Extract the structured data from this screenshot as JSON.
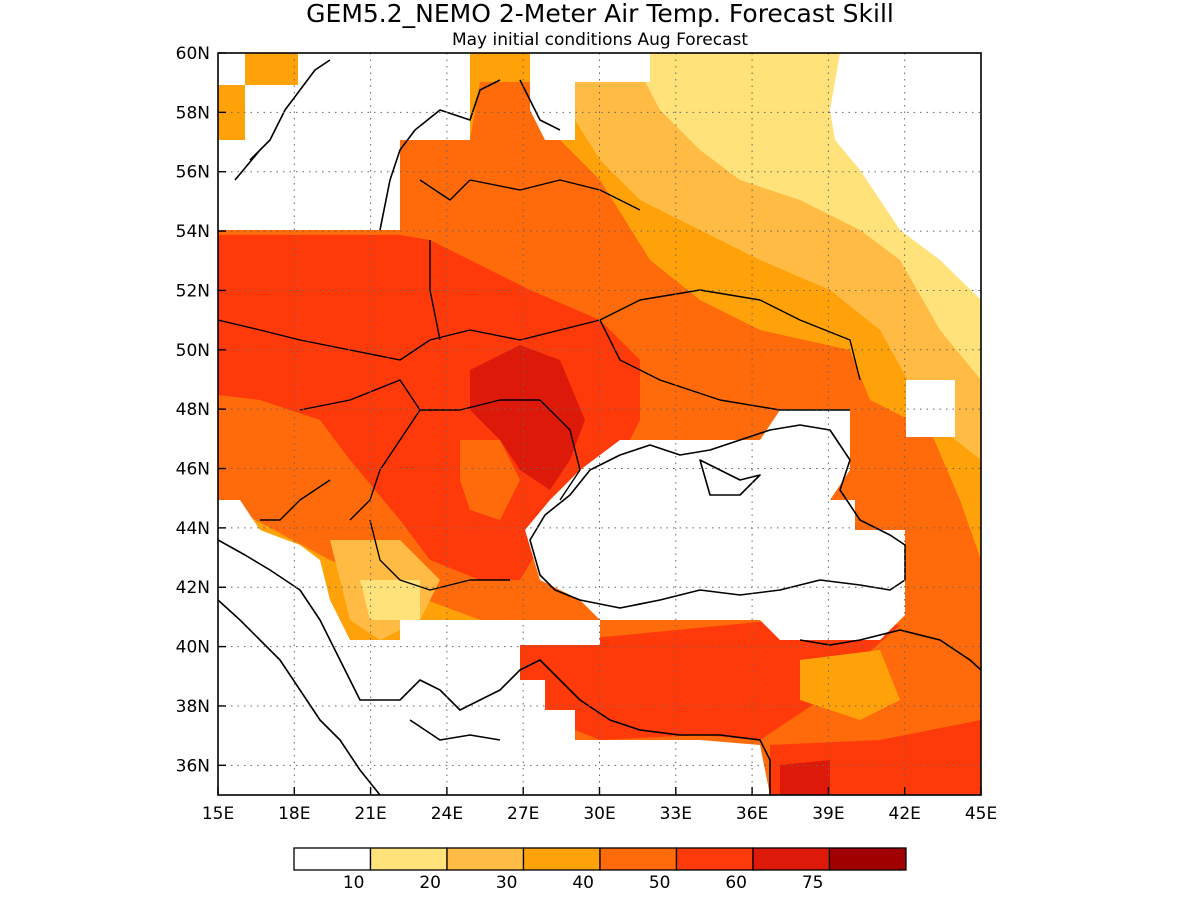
{
  "title": "GEM5.2_NEMO 2-Meter Air Temp. Forecast Skill",
  "subtitle": "May initial conditions  Aug Forecast",
  "map": {
    "lon_range": [
      15,
      45
    ],
    "lat_range": [
      35,
      60
    ],
    "lon_ticks": [
      "15E",
      "18E",
      "21E",
      "24E",
      "27E",
      "30E",
      "33E",
      "36E",
      "39E",
      "42E",
      "45E"
    ],
    "lat_ticks": [
      "60N",
      "58N",
      "56N",
      "54N",
      "52N",
      "50N",
      "48N",
      "46N",
      "44N",
      "42N",
      "40N",
      "38N",
      "36N"
    ],
    "grid": true
  },
  "legend": {
    "labels": [
      "10",
      "20",
      "30",
      "40",
      "50",
      "60",
      "75"
    ],
    "colors": [
      "#ffffff",
      "#ffe27a",
      "#ffbb44",
      "#ffa20a",
      "#ff6a0a",
      "#ff3a0a",
      "#dd1a0a",
      "#a00000"
    ]
  }
}
